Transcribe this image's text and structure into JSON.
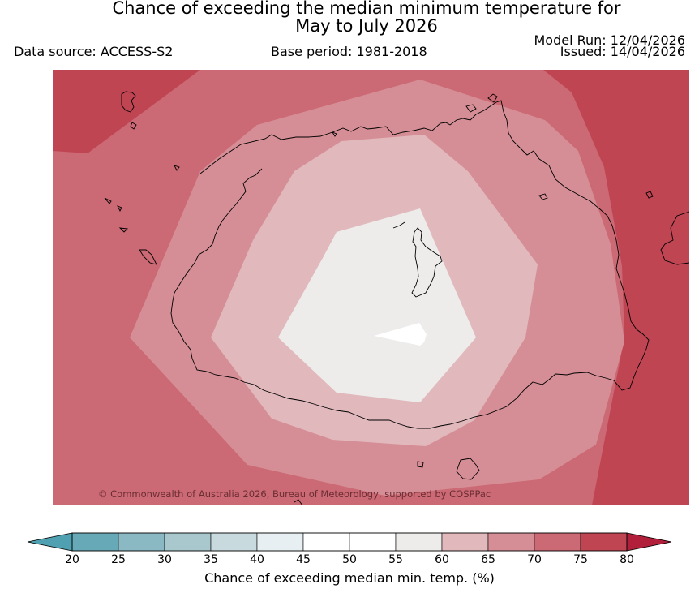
{
  "header": {
    "title_line1": "Chance of exceeding the median minimum temperature for",
    "title_line2": "May to July 2026",
    "data_source": "Data source: ACCESS-S2",
    "base_period": "Base period: 1981-2018",
    "model_run": "Model Run: 12/04/2026",
    "issued": "Issued: 14/04/2026"
  },
  "map": {
    "copyright": "© Commonwealth of Australia 2026, Bureau of Meteorology, supported by COSPPac",
    "colors": {
      "band_75_80": "#c04553",
      "band_70_75": "#cb6974",
      "band_65_70": "#d68e96",
      "band_60_65": "#e1b8bc",
      "band_55_60": "#eeeceb",
      "coastline": "#000000"
    }
  },
  "colorbar": {
    "label": "Chance of exceeding median min. temp. (%)",
    "ticks": [
      "20",
      "25",
      "30",
      "35",
      "40",
      "45",
      "50",
      "55",
      "60",
      "65",
      "70",
      "75",
      "80"
    ],
    "colors": [
      "#67a9b6",
      "#8ab8c3",
      "#a8c8cd",
      "#c8dadd",
      "#e8eff2",
      "#ffffff",
      "#ffffff",
      "#eeeceb",
      "#e1b8bc",
      "#d68e96",
      "#cb6974",
      "#c04553"
    ],
    "under_color": "#4fa1b1",
    "over_color": "#b21f3a"
  }
}
